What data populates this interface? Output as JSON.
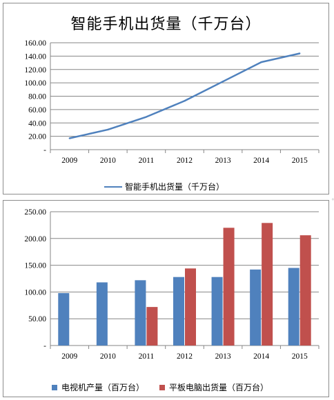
{
  "charts": [
    {
      "title": "智能手机出货量（千万台）",
      "legend_position": "bottom",
      "chart_data": {
        "type": "line",
        "categories": [
          "2009",
          "2010",
          "2011",
          "2012",
          "2013",
          "2014",
          "2015"
        ],
        "series": [
          {
            "name": "智能手机出货量（千万台）",
            "values": [
              17,
              30,
              49,
              73,
              102,
              131,
              144
            ],
            "color": "#4f81bd"
          }
        ],
        "ylim": [
          0,
          160
        ],
        "yticks": [
          "-",
          "20.00",
          "40.00",
          "60.00",
          "80.00",
          "100.00",
          "120.00",
          "140.00",
          "160.00"
        ],
        "grid": true
      }
    },
    {
      "legend_position": "bottom",
      "chart_data": {
        "type": "bar",
        "categories": [
          "2009",
          "2010",
          "2011",
          "2012",
          "2013",
          "2014",
          "2015"
        ],
        "series": [
          {
            "name": "电视机产量（百万台）",
            "values": [
              98,
              118,
              122,
              128,
              128,
              142,
              145
            ],
            "color": "#4f81bd"
          },
          {
            "name": "平板电脑出货量（百万台）",
            "values": [
              0,
              0,
              72,
              144,
              220,
              229,
              206
            ],
            "color": "#c0504d"
          }
        ],
        "ylim": [
          0,
          250
        ],
        "yticks": [
          "-",
          "50.00",
          "100.00",
          "150.00",
          "200.00",
          "250.00"
        ],
        "grid": true
      }
    }
  ]
}
